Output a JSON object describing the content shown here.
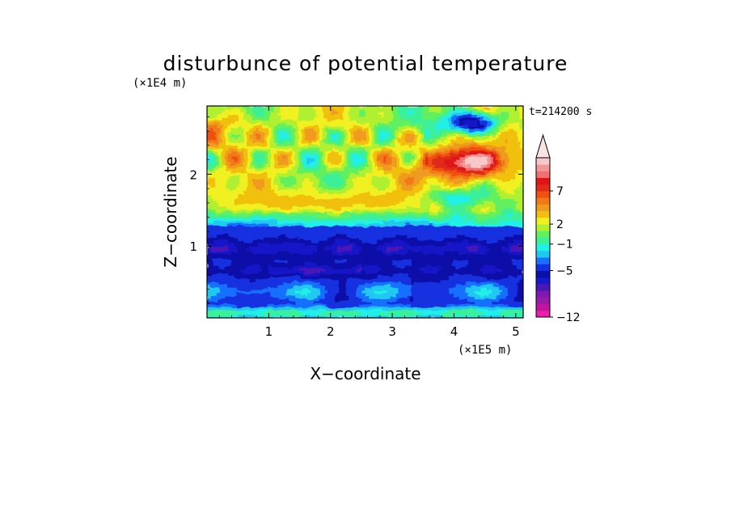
{
  "chart_data": {
    "type": "heatmap",
    "title": "disturbunce of potential temperature",
    "xlabel": "X−coordinate",
    "ylabel": "Z−coordinate",
    "x_unit": "(×1E5 m)",
    "y_unit": "(×1E4 m)",
    "time_label": "t=214200 s",
    "xlim": [
      0,
      5.12
    ],
    "ylim": [
      0,
      2.95
    ],
    "x_ticks": [
      1,
      2,
      3,
      4,
      5
    ],
    "y_ticks": [
      1,
      2
    ],
    "grid": false,
    "colorbar": {
      "position": "right",
      "extend_max": true,
      "levels": [
        -12,
        -11,
        -10,
        -9,
        -8,
        -7,
        -6,
        -5,
        -4,
        -3,
        -2,
        -1,
        0,
        1,
        2,
        3,
        4,
        5,
        6,
        7,
        8,
        9,
        10,
        11,
        12
      ],
      "tick_labels": [
        "7",
        "2",
        "−1",
        "−5",
        "−12"
      ],
      "tick_values": [
        7,
        2,
        -1,
        -5,
        -12
      ],
      "colors": [
        "#ee1bab",
        "#c0169e",
        "#9b1aa8",
        "#7d1ab0",
        "#4b18b8",
        "#1818c8",
        "#0a10a8",
        "#1530e0",
        "#1870ff",
        "#20c8f0",
        "#20f0e8",
        "#3af098",
        "#60f060",
        "#b0f030",
        "#f0f020",
        "#f0c010",
        "#f09a20",
        "#f07a18",
        "#f05010",
        "#e02a1a",
        "#e01414",
        "#f07070",
        "#f09898",
        "#f8c8c8"
      ]
    }
  }
}
